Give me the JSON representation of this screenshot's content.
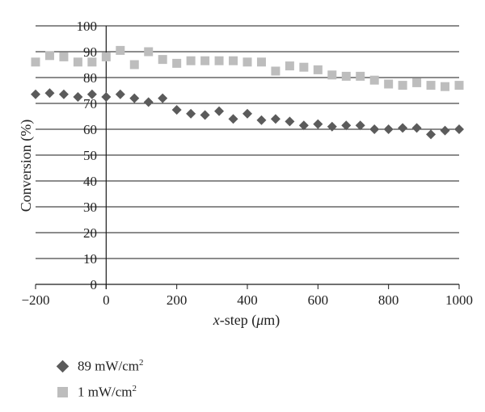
{
  "chart_data": {
    "type": "scatter",
    "xlabel_italic": "x",
    "xlabel_rest": "-step (",
    "xlabel_mu": "μ",
    "xlabel_end": "m)",
    "ylabel": "Conversion (%)",
    "xlim": [
      -200,
      1000
    ],
    "ylim": [
      0,
      100
    ],
    "xticks": [
      "−200",
      "0",
      "200",
      "400",
      "600",
      "800",
      "1000"
    ],
    "xtick_values": [
      -200,
      0,
      200,
      400,
      600,
      800,
      1000
    ],
    "yticks": [
      0,
      10,
      20,
      30,
      40,
      50,
      60,
      70,
      80,
      90,
      100
    ],
    "grid": true,
    "legend_position": "bottom-left",
    "series": [
      {
        "name": "89 mW/cm2",
        "label_main": "89 mW/cm",
        "label_sup": "2",
        "marker": "diamond",
        "color": "#5b5b5b",
        "points": [
          [
            -200,
            73.5
          ],
          [
            -160,
            74
          ],
          [
            -120,
            73.5
          ],
          [
            -80,
            72.5
          ],
          [
            -40,
            73.5
          ],
          [
            0,
            72.5
          ],
          [
            40,
            73.5
          ],
          [
            80,
            72
          ],
          [
            120,
            70.5
          ],
          [
            160,
            72
          ],
          [
            200,
            67.5
          ],
          [
            240,
            66
          ],
          [
            280,
            65.5
          ],
          [
            320,
            67
          ],
          [
            360,
            64
          ],
          [
            400,
            66
          ],
          [
            440,
            63.5
          ],
          [
            480,
            64
          ],
          [
            520,
            63
          ],
          [
            560,
            61.5
          ],
          [
            600,
            62
          ],
          [
            640,
            61
          ],
          [
            680,
            61.5
          ],
          [
            720,
            61.5
          ],
          [
            760,
            60
          ],
          [
            800,
            60
          ],
          [
            840,
            60.5
          ],
          [
            880,
            60.5
          ],
          [
            920,
            58
          ],
          [
            960,
            59.5
          ],
          [
            1000,
            60
          ]
        ]
      },
      {
        "name": "1 mW/cm2",
        "label_main": "1 mW/cm",
        "label_sup": "2",
        "marker": "square",
        "color": "#bdbdbd",
        "points": [
          [
            -200,
            86
          ],
          [
            -160,
            88.5
          ],
          [
            -120,
            88
          ],
          [
            -80,
            86
          ],
          [
            -40,
            86
          ],
          [
            0,
            88
          ],
          [
            40,
            90.5
          ],
          [
            80,
            85
          ],
          [
            120,
            90
          ],
          [
            160,
            87
          ],
          [
            200,
            85.5
          ],
          [
            240,
            86.5
          ],
          [
            280,
            86.5
          ],
          [
            320,
            86.5
          ],
          [
            360,
            86.5
          ],
          [
            400,
            86
          ],
          [
            440,
            86
          ],
          [
            480,
            82.5
          ],
          [
            520,
            84.5
          ],
          [
            560,
            84
          ],
          [
            600,
            83
          ],
          [
            640,
            81
          ],
          [
            680,
            80.5
          ],
          [
            720,
            80.5
          ],
          [
            760,
            79
          ],
          [
            800,
            77.5
          ],
          [
            840,
            77
          ],
          [
            880,
            78
          ],
          [
            920,
            77
          ],
          [
            960,
            76.5
          ],
          [
            1000,
            77
          ]
        ]
      }
    ]
  }
}
